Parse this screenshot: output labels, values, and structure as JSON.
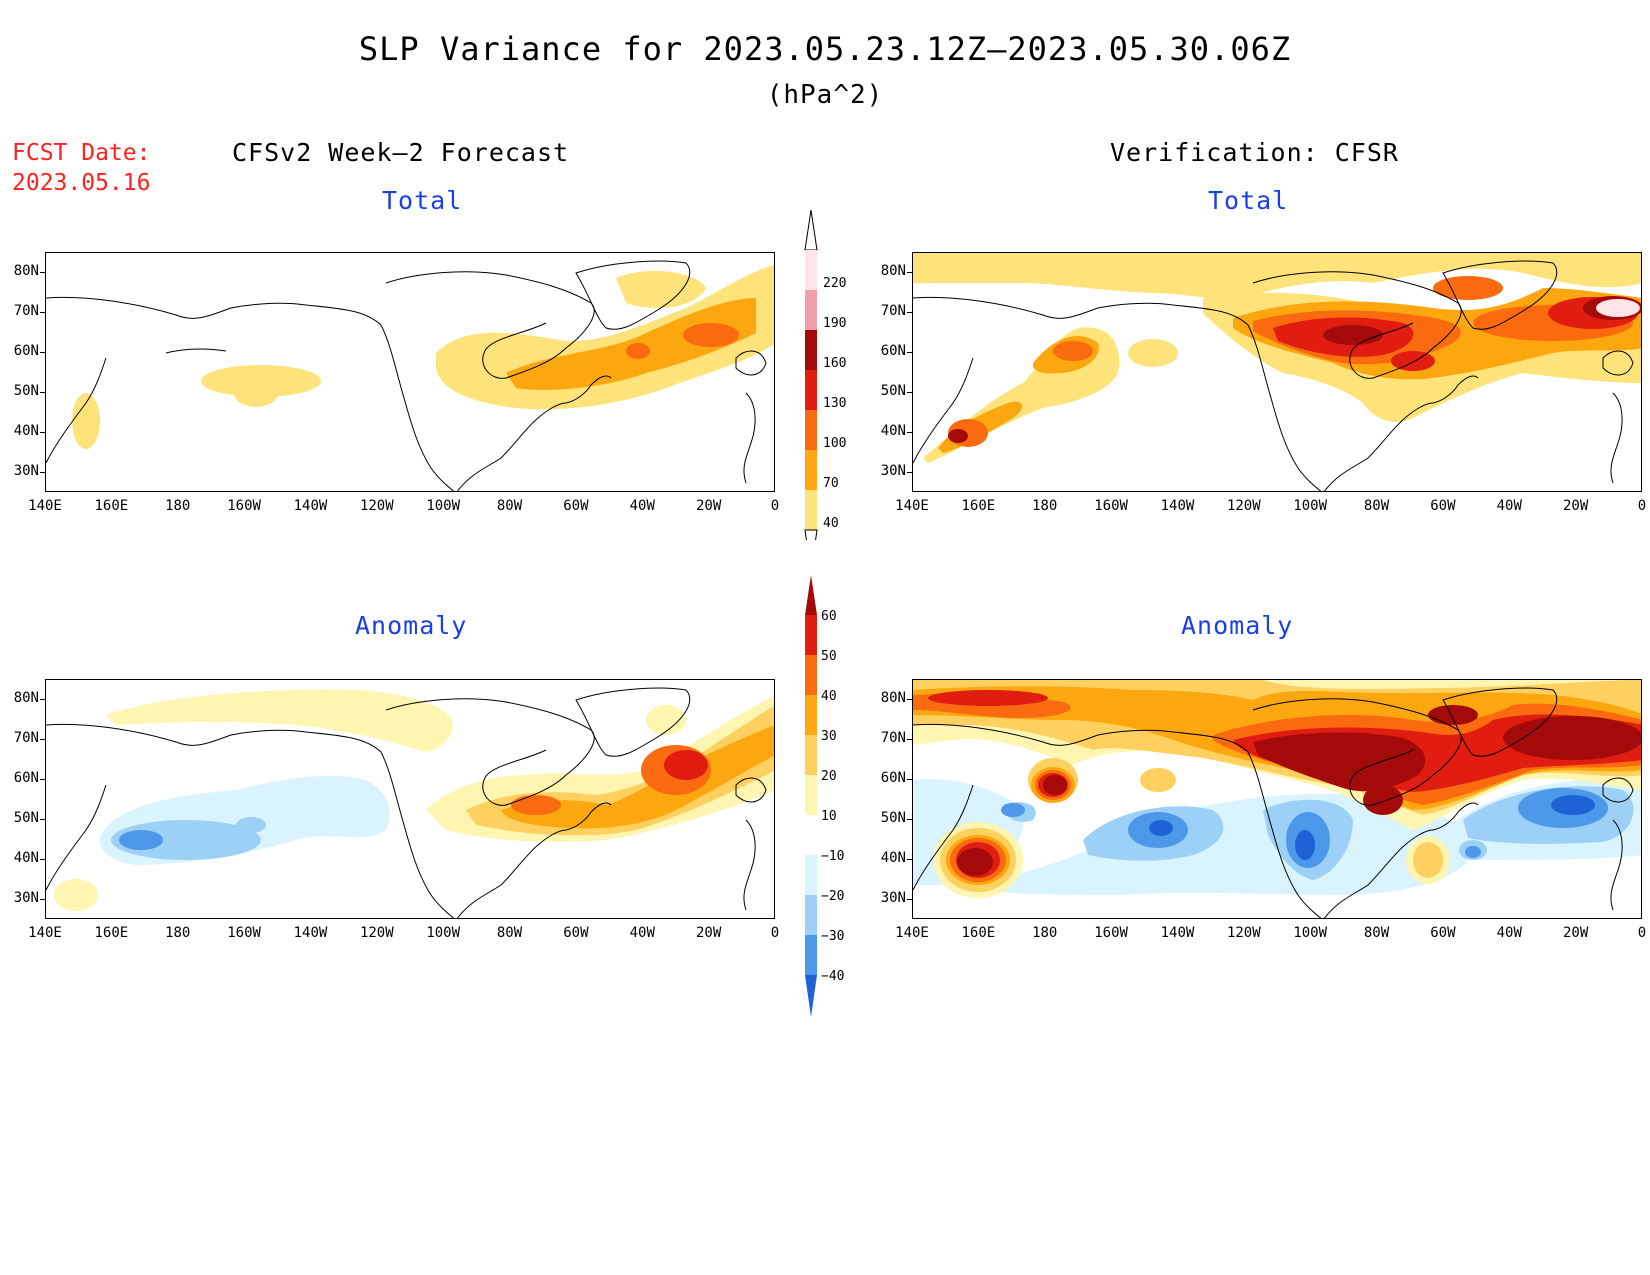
{
  "title": "SLP Variance for 2023.05.23.12Z—2023.05.30.06Z",
  "units": "(hPa^2)",
  "fcst_date_label": "FCST Date:",
  "fcst_date_value": "2023.05.16",
  "left_column_title": "CFSv2 Week—2 Forecast",
  "right_column_title": "Verification: CFSR",
  "panels": [
    {
      "label": "Total"
    },
    {
      "label": "Total"
    },
    {
      "label": "Anomaly"
    },
    {
      "label": "Anomaly"
    }
  ],
  "lat_labels": [
    "80N",
    "70N",
    "60N",
    "50N",
    "40N",
    "30N"
  ],
  "lon_labels": [
    "140E",
    "160E",
    "180",
    "160W",
    "140W",
    "120W",
    "100W",
    "80W",
    "60W",
    "40W",
    "20W",
    "0"
  ],
  "total_colorbar": {
    "labels": [
      "220",
      "190",
      "160",
      "130",
      "100",
      "70",
      "40"
    ],
    "colors": [
      "#fde4e6",
      "#f0a0a6",
      "#a50a0a",
      "#e01d10",
      "#fa6b10",
      "#fca70f",
      "#fde37a"
    ]
  },
  "anomaly_colorbar": {
    "labels": [
      "60",
      "50",
      "40",
      "30",
      "20",
      "10",
      "−10",
      "−20",
      "−30",
      "−40"
    ],
    "colors": [
      "#a50a0a",
      "#e01d10",
      "#fa6b10",
      "#fca70f",
      "#fdd060",
      "#fef5b0",
      "#ffffff",
      "#d9f4fe",
      "#9dd0f7",
      "#4d98e8",
      "#1f62d6"
    ]
  },
  "colors": {
    "fcst_date": "#ff2020",
    "panel_label": "#1b3fe6"
  }
}
